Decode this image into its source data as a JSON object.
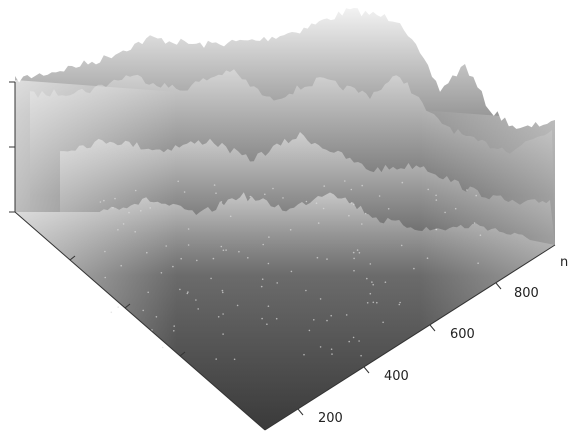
{
  "axis": {
    "ticks": [
      "200",
      "400",
      "600",
      "800"
    ],
    "unit": "n"
  }
}
